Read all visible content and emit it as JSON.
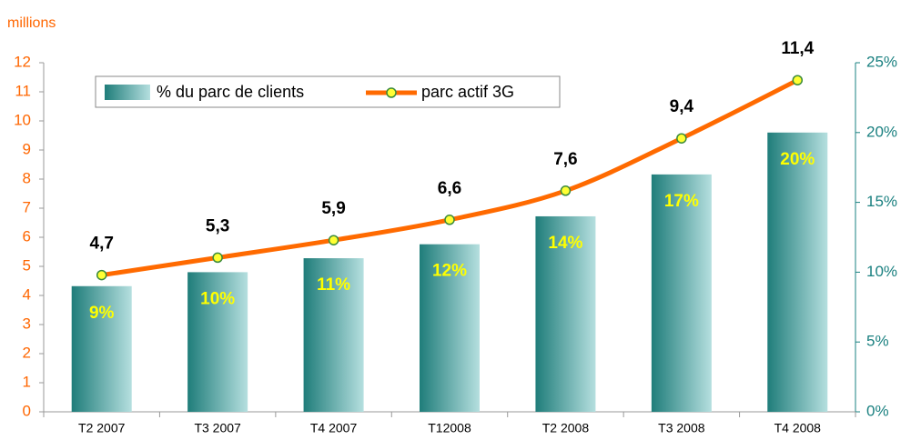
{
  "chart_data": {
    "type": "bar-line",
    "ylabel": "millions",
    "categories": [
      "T2 2007",
      "T3 2007",
      "T4 2007",
      "T12008",
      "T2 2008",
      "T3 2008",
      "T4 2008"
    ],
    "series": [
      {
        "name": "% du parc de clients",
        "type": "bar",
        "axis": "y2",
        "color": "#1f7d7a",
        "color2": "#b5dfdf",
        "values": [
          9,
          10,
          11,
          12,
          14,
          17,
          20
        ],
        "value_labels": [
          "9%",
          "10%",
          "11%",
          "12%",
          "14%",
          "17%",
          "20%"
        ]
      },
      {
        "name": "parc actif 3G",
        "type": "line",
        "axis": "y",
        "color": "#ff6a00",
        "marker_color": "#ffff33",
        "values": [
          4.7,
          5.3,
          5.9,
          6.6,
          7.6,
          9.4,
          11.4
        ],
        "value_labels": [
          "4,7",
          "5,3",
          "5,9",
          "6,6",
          "7,6",
          "9,4",
          "11,4"
        ]
      }
    ],
    "ylim": [
      0,
      12
    ],
    "yticks": [
      0,
      1,
      2,
      3,
      4,
      5,
      6,
      7,
      8,
      9,
      10,
      11,
      12
    ],
    "y_color": "#ff6600",
    "y2lim": [
      0,
      25
    ],
    "y2ticks": [
      {
        "value": 0,
        "label": "0%"
      },
      {
        "value": 5,
        "label": "5%"
      },
      {
        "value": 10,
        "label": "10%"
      },
      {
        "value": 15,
        "label": "15%"
      },
      {
        "value": 20,
        "label": "20%"
      },
      {
        "value": 25,
        "label": "25%"
      }
    ],
    "y2_color": "#1a8080",
    "legend": "top-left"
  }
}
